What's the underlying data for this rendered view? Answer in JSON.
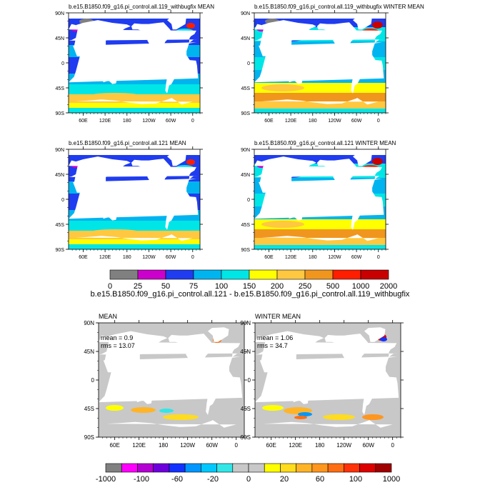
{
  "figure": {
    "abs_panels": [
      {
        "title": "b.e15.B1850.f09_g16.pi_control.all.119_withbugfix MEAN",
        "id": "p119-mean"
      },
      {
        "title": "b.e15.B1850.f09_g16.pi_control.all.119_withbugfix WINTER MEAN",
        "id": "p119-winter"
      },
      {
        "title": "b.e15.B1850.f09_g16.pi_control.all.121 MEAN",
        "id": "p121-mean"
      },
      {
        "title": "b.e15.B1850.f09_g16.pi_control.all.121 WINTER MEAN",
        "id": "p121-winter"
      }
    ],
    "diff_title": "b.e15.B1850.f09_g16.pi_control.all.121 - b.e15.B1850.f09_g16.pi_control.all.119_withbugfix",
    "diff_panels": [
      {
        "title": "MEAN",
        "mean_text": "mean = 0.9",
        "rms_text": "rms = 13.07"
      },
      {
        "title": "WINTER MEAN",
        "mean_text": "mean = 1.06",
        "rms_text": "rms = 34.7"
      }
    ]
  },
  "chart_data": [
    {
      "type": "map",
      "projection": "cylindrical",
      "xlabel_ticks": [
        "60E",
        "120E",
        "180",
        "120W",
        "60W",
        "0"
      ],
      "ylabel_ticks_abs": [
        "90N",
        "45N",
        "0",
        "45S",
        "90S"
      ],
      "ylabel_ticks_diff": [
        "90N",
        "45N",
        "0",
        "45S",
        "90S"
      ],
      "ylim": [
        -90,
        90
      ],
      "xlim": [
        20,
        380
      ]
    },
    {
      "type": "colorbar",
      "labels": [
        "0",
        "25",
        "50",
        "75",
        "100",
        "150",
        "200",
        "250",
        "500",
        "1000",
        "2000"
      ],
      "colors": [
        "#808080",
        "#cc00cc",
        "#1f3cf0",
        "#00b4f0",
        "#00e6e6",
        "#ffff00",
        "#ffc840",
        "#f0961e",
        "#ff1e00",
        "#c80000"
      ]
    },
    {
      "type": "colorbar",
      "labels": [
        "-1000",
        "-100",
        "-60",
        "-20",
        "0",
        "20",
        "60",
        "100",
        "1000"
      ],
      "colors": [
        "#808080",
        "#ff00ff",
        "#b400d2",
        "#6e00dc",
        "#1432ff",
        "#0096ff",
        "#00c8ff",
        "#32e6e6",
        "#c8c8c8",
        "#c8c8c8",
        "#ffff00",
        "#ffdc1e",
        "#ffb428",
        "#ff961e",
        "#ff6e14",
        "#ff320a",
        "#dc0000",
        "#a00000"
      ]
    }
  ]
}
